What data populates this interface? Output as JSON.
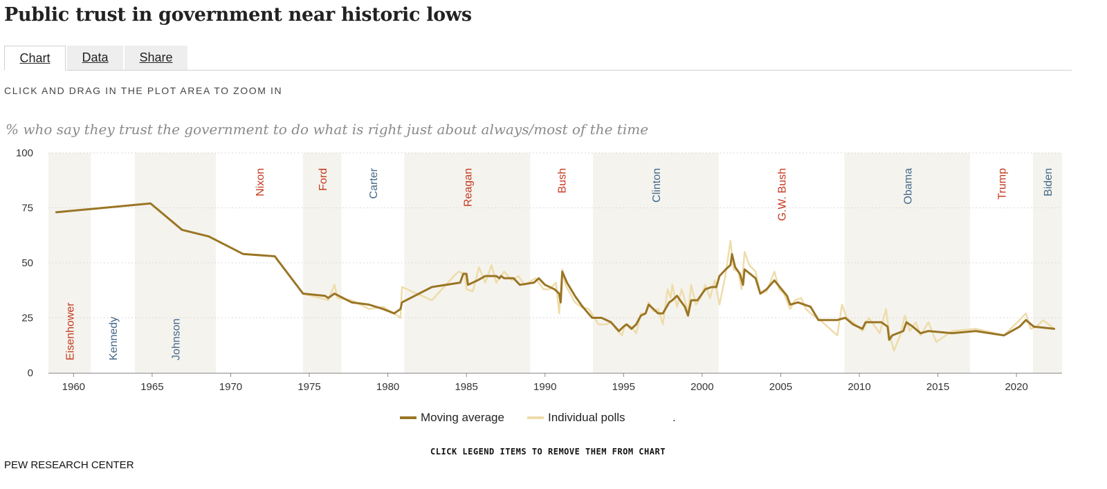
{
  "title": "Public trust in government near historic lows",
  "tabs": [
    {
      "label": "Chart",
      "active": true
    },
    {
      "label": "Data",
      "active": false
    },
    {
      "label": "Share",
      "active": false
    }
  ],
  "zoom_hint": "CLICK AND DRAG IN THE PLOT AREA TO ZOOM IN",
  "legend_hint": "CLICK LEGEND ITEMS TO REMOVE THEM FROM CHART",
  "legend_trailing": ".",
  "source": "PEW RESEARCH CENTER",
  "colors": {
    "moving_average": "#9a7524",
    "individual_polls": "#eedcaa",
    "republican": "#c4391f",
    "democrat": "#43688a",
    "shade": "#f4f3ee",
    "grid": "#d9d9d9"
  },
  "chart_data": {
    "type": "line",
    "title": "Public trust in government near historic lows",
    "subtitle": "% who say they trust the government to do what is right just about always/most of the time",
    "xlabel": "",
    "ylabel": "",
    "xlim": [
      1958.4,
      2022.9
    ],
    "ylim": [
      0,
      100
    ],
    "x_ticks": [
      1960,
      1965,
      1970,
      1975,
      1980,
      1985,
      1990,
      1995,
      2000,
      2005,
      2010,
      2015,
      2020
    ],
    "y_ticks": [
      0,
      25,
      50,
      75,
      100
    ],
    "grid": true,
    "legend_position": "bottom-center",
    "presidents": [
      {
        "name": "Eisenhower",
        "start": 1958.4,
        "end": 1961.1,
        "party": "R",
        "shaded": true,
        "label_pos": "bottom"
      },
      {
        "name": "Kennedy",
        "start": 1961.1,
        "end": 1963.9,
        "party": "D",
        "shaded": false,
        "label_pos": "bottom"
      },
      {
        "name": "Johnson",
        "start": 1963.9,
        "end": 1969.05,
        "party": "D",
        "shaded": true,
        "label_pos": "bottom"
      },
      {
        "name": "Nixon",
        "start": 1969.05,
        "end": 1974.6,
        "party": "R",
        "shaded": false,
        "label_pos": "top"
      },
      {
        "name": "Ford",
        "start": 1974.6,
        "end": 1977.05,
        "party": "R",
        "shaded": true,
        "label_pos": "top"
      },
      {
        "name": "Carter",
        "start": 1977.05,
        "end": 1981.05,
        "party": "D",
        "shaded": false,
        "label_pos": "top"
      },
      {
        "name": "Reagan",
        "start": 1981.05,
        "end": 1989.05,
        "party": "R",
        "shaded": true,
        "label_pos": "top"
      },
      {
        "name": "Bush",
        "start": 1989.05,
        "end": 1993.05,
        "party": "R",
        "shaded": false,
        "label_pos": "top"
      },
      {
        "name": "Clinton",
        "start": 1993.05,
        "end": 2001.05,
        "party": "D",
        "shaded": true,
        "label_pos": "top"
      },
      {
        "name": "G.W. Bush",
        "start": 2001.05,
        "end": 2009.05,
        "party": "R",
        "shaded": false,
        "label_pos": "top"
      },
      {
        "name": "Obama",
        "start": 2009.05,
        "end": 2017.05,
        "party": "D",
        "shaded": true,
        "label_pos": "top"
      },
      {
        "name": "Trump",
        "start": 2017.05,
        "end": 2021.05,
        "party": "R",
        "shaded": false,
        "label_pos": "top"
      },
      {
        "name": "Biden",
        "start": 2021.05,
        "end": 2022.9,
        "party": "D",
        "shaded": true,
        "label_pos": "top"
      }
    ],
    "series": [
      {
        "name": "Individual polls",
        "color": "#eedcaa",
        "points": [
          [
            1958.9,
            73
          ],
          [
            1964.9,
            77
          ],
          [
            1966.9,
            65
          ],
          [
            1968.6,
            62
          ],
          [
            1970.8,
            54
          ],
          [
            1972.8,
            53
          ],
          [
            1974.6,
            36
          ],
          [
            1976.2,
            33
          ],
          [
            1976.6,
            40
          ],
          [
            1976.8,
            34
          ],
          [
            1977.7,
            33
          ],
          [
            1978.8,
            29
          ],
          [
            1979.7,
            30
          ],
          [
            1980.6,
            26
          ],
          [
            1980.8,
            25
          ],
          [
            1980.9,
            39
          ],
          [
            1982.8,
            33
          ],
          [
            1984.2,
            44
          ],
          [
            1984.5,
            46
          ],
          [
            1984.9,
            45
          ],
          [
            1985.0,
            38
          ],
          [
            1985.4,
            37
          ],
          [
            1985.8,
            48
          ],
          [
            1986.2,
            41
          ],
          [
            1986.6,
            49
          ],
          [
            1986.9,
            41
          ],
          [
            1987.4,
            46
          ],
          [
            1987.9,
            42
          ],
          [
            1988.3,
            44
          ],
          [
            1988.7,
            40
          ],
          [
            1989.4,
            43
          ],
          [
            1989.9,
            38
          ],
          [
            1990.3,
            38
          ],
          [
            1990.7,
            41
          ],
          [
            1990.9,
            27
          ],
          [
            1991.1,
            47
          ],
          [
            1991.3,
            40
          ],
          [
            1991.9,
            32
          ],
          [
            1992.3,
            30
          ],
          [
            1992.8,
            29
          ],
          [
            1993.4,
            22
          ],
          [
            1993.9,
            22
          ],
          [
            1994.2,
            23
          ],
          [
            1994.5,
            20
          ],
          [
            1994.9,
            17
          ],
          [
            1995.1,
            22
          ],
          [
            1995.5,
            21
          ],
          [
            1995.8,
            18
          ],
          [
            1996.1,
            27
          ],
          [
            1996.4,
            27
          ],
          [
            1996.6,
            32
          ],
          [
            1996.9,
            28
          ],
          [
            1997.2,
            29
          ],
          [
            1997.5,
            22
          ],
          [
            1997.8,
            38
          ],
          [
            1998.0,
            34
          ],
          [
            1998.1,
            40
          ],
          [
            1998.4,
            30
          ],
          [
            1998.7,
            38
          ],
          [
            1998.9,
            33
          ],
          [
            1999.1,
            27
          ],
          [
            1999.3,
            40
          ],
          [
            1999.6,
            31
          ],
          [
            1999.9,
            34
          ],
          [
            2000.2,
            40
          ],
          [
            2000.5,
            34
          ],
          [
            2000.8,
            42
          ],
          [
            2001.1,
            31
          ],
          [
            2001.5,
            45
          ],
          [
            2001.8,
            60
          ],
          [
            2002.0,
            47
          ],
          [
            2002.3,
            46
          ],
          [
            2002.5,
            38
          ],
          [
            2002.7,
            55
          ],
          [
            2003.0,
            49
          ],
          [
            2003.4,
            46
          ],
          [
            2003.7,
            36
          ],
          [
            2004.1,
            37
          ],
          [
            2004.6,
            46
          ],
          [
            2004.9,
            38
          ],
          [
            2005.2,
            36
          ],
          [
            2005.6,
            29
          ],
          [
            2005.9,
            33
          ],
          [
            2006.3,
            34
          ],
          [
            2006.6,
            29
          ],
          [
            2006.9,
            27
          ],
          [
            2007.5,
            24
          ],
          [
            2008.6,
            17
          ],
          [
            2008.9,
            31
          ],
          [
            2009.2,
            25
          ],
          [
            2009.6,
            23
          ],
          [
            2009.9,
            21
          ],
          [
            2010.2,
            19
          ],
          [
            2010.6,
            25
          ],
          [
            2010.9,
            22
          ],
          [
            2011.3,
            18
          ],
          [
            2011.7,
            29
          ],
          [
            2011.9,
            18
          ],
          [
            2012.2,
            10
          ],
          [
            2012.6,
            17
          ],
          [
            2012.9,
            26
          ],
          [
            2013.2,
            19
          ],
          [
            2013.6,
            23
          ],
          [
            2013.9,
            17
          ],
          [
            2014.4,
            23
          ],
          [
            2014.9,
            14
          ],
          [
            2015.9,
            19
          ],
          [
            2017.4,
            20
          ],
          [
            2019.2,
            17
          ],
          [
            2020.2,
            24
          ],
          [
            2020.6,
            27
          ],
          [
            2020.9,
            20
          ],
          [
            2021.3,
            21
          ],
          [
            2021.7,
            24
          ],
          [
            2022.4,
            20
          ]
        ]
      },
      {
        "name": "Moving average",
        "color": "#9a7524",
        "points": [
          [
            1958.9,
            73
          ],
          [
            1964.9,
            77
          ],
          [
            1966.9,
            65
          ],
          [
            1968.6,
            62
          ],
          [
            1970.8,
            54
          ],
          [
            1972.8,
            53
          ],
          [
            1974.6,
            36
          ],
          [
            1976.0,
            35
          ],
          [
            1976.2,
            34
          ],
          [
            1976.6,
            36
          ],
          [
            1977.7,
            32
          ],
          [
            1978.8,
            31
          ],
          [
            1979.7,
            29
          ],
          [
            1980.4,
            27
          ],
          [
            1980.8,
            29
          ],
          [
            1980.9,
            32
          ],
          [
            1982.8,
            39
          ],
          [
            1984.6,
            41
          ],
          [
            1984.8,
            45
          ],
          [
            1985.0,
            45
          ],
          [
            1985.1,
            40
          ],
          [
            1985.7,
            42
          ],
          [
            1986.2,
            44
          ],
          [
            1986.9,
            44
          ],
          [
            1987.1,
            43
          ],
          [
            1987.2,
            44
          ],
          [
            1987.4,
            43
          ],
          [
            1988.0,
            43
          ],
          [
            1988.4,
            40
          ],
          [
            1989.3,
            41
          ],
          [
            1989.6,
            43
          ],
          [
            1990.0,
            40
          ],
          [
            1990.6,
            38
          ],
          [
            1990.9,
            36
          ],
          [
            1991.0,
            32
          ],
          [
            1991.1,
            46
          ],
          [
            1991.4,
            41
          ],
          [
            1991.9,
            35
          ],
          [
            1992.4,
            30
          ],
          [
            1993.0,
            25
          ],
          [
            1993.6,
            25
          ],
          [
            1994.2,
            23
          ],
          [
            1994.7,
            19
          ],
          [
            1995.0,
            21
          ],
          [
            1995.2,
            22
          ],
          [
            1995.5,
            20
          ],
          [
            1995.8,
            22
          ],
          [
            1996.1,
            26
          ],
          [
            1996.4,
            27
          ],
          [
            1996.6,
            31
          ],
          [
            1996.9,
            29
          ],
          [
            1997.2,
            27
          ],
          [
            1997.5,
            27
          ],
          [
            1997.9,
            32
          ],
          [
            1998.1,
            33
          ],
          [
            1998.4,
            35
          ],
          [
            1998.7,
            32
          ],
          [
            1998.9,
            30
          ],
          [
            1999.1,
            26
          ],
          [
            1999.3,
            33
          ],
          [
            1999.7,
            33
          ],
          [
            1999.9,
            35
          ],
          [
            2000.2,
            38
          ],
          [
            2000.6,
            39
          ],
          [
            2000.9,
            39
          ],
          [
            2001.1,
            44
          ],
          [
            2001.5,
            47
          ],
          [
            2001.8,
            49
          ],
          [
            2001.9,
            54
          ],
          [
            2002.1,
            48
          ],
          [
            2002.4,
            45
          ],
          [
            2002.6,
            40
          ],
          [
            2002.7,
            47
          ],
          [
            2003.4,
            43
          ],
          [
            2003.7,
            36
          ],
          [
            2004.1,
            38
          ],
          [
            2004.6,
            42
          ],
          [
            2005.4,
            35
          ],
          [
            2005.6,
            31
          ],
          [
            2006.1,
            32
          ],
          [
            2006.5,
            31
          ],
          [
            2006.9,
            30
          ],
          [
            2007.4,
            24
          ],
          [
            2008.6,
            24
          ],
          [
            2009.1,
            25
          ],
          [
            2009.6,
            22
          ],
          [
            2010.2,
            20
          ],
          [
            2010.4,
            23
          ],
          [
            2010.9,
            23
          ],
          [
            2011.4,
            23
          ],
          [
            2011.8,
            21
          ],
          [
            2011.9,
            15
          ],
          [
            2012.1,
            17
          ],
          [
            2012.8,
            19
          ],
          [
            2013.0,
            23
          ],
          [
            2013.4,
            21
          ],
          [
            2013.9,
            18
          ],
          [
            2014.4,
            19
          ],
          [
            2015.9,
            18
          ],
          [
            2017.4,
            19
          ],
          [
            2019.2,
            17
          ],
          [
            2020.2,
            21
          ],
          [
            2020.6,
            24
          ],
          [
            2021.1,
            21
          ],
          [
            2022.4,
            20
          ]
        ]
      }
    ]
  }
}
